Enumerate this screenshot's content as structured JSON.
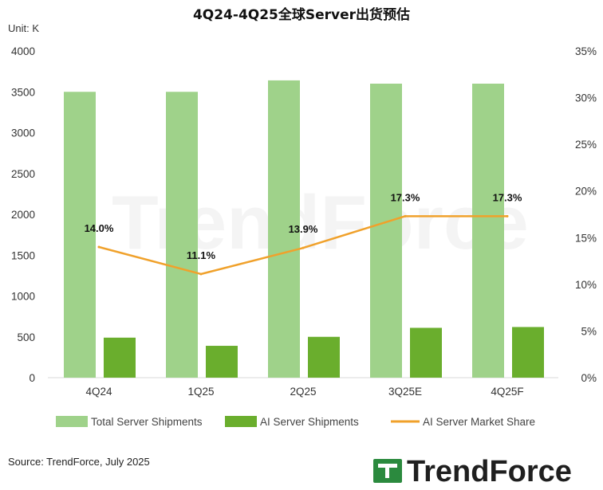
{
  "chart_data": {
    "type": "bar",
    "title": "4Q24-4Q25全球Server出货预估",
    "unit_label": "Unit: K",
    "categories": [
      "4Q24",
      "1Q25",
      "2Q25",
      "3Q25E",
      "4Q25F"
    ],
    "y_left": {
      "min": 0,
      "max": 4000,
      "ticks": [
        "0",
        "500",
        "1000",
        "1500",
        "2000",
        "2500",
        "3000",
        "3500",
        "4000"
      ]
    },
    "y_right": {
      "min": 0,
      "max": 35,
      "ticks": [
        "0%",
        "5%",
        "10%",
        "15%",
        "20%",
        "25%",
        "30%",
        "35%"
      ]
    },
    "series": [
      {
        "name": "Total Server Shipments",
        "type": "bar",
        "axis": "left",
        "color": "#9fd28a",
        "values": [
          3500,
          3500,
          3640,
          3600,
          3600
        ]
      },
      {
        "name": "AI Server Shipments",
        "type": "bar",
        "axis": "left",
        "color": "#6aae2d",
        "values": [
          490,
          390,
          500,
          610,
          620
        ]
      },
      {
        "name": "AI Server Market Share",
        "type": "line",
        "axis": "right",
        "color": "#f0a12b",
        "values": [
          14.0,
          11.1,
          13.9,
          17.3,
          17.3
        ],
        "labels": [
          "14.0%",
          "11.1%",
          "13.9%",
          "17.3%",
          "17.3%"
        ]
      }
    ],
    "legend_position": "bottom",
    "grid": false
  },
  "source": "Source: TrendForce, July 2025",
  "watermark": "TrendForce",
  "logo": {
    "text": "TrendForce",
    "color": "#2b8a3e"
  }
}
